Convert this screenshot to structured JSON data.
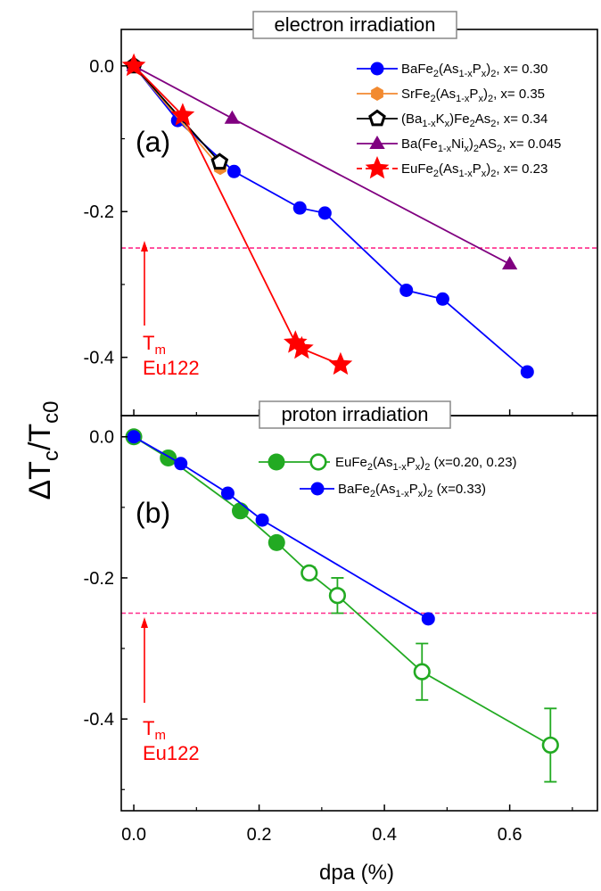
{
  "figure": {
    "ylabel": "ΔT_c/T_c0",
    "xlabel": "dpa (%)",
    "x_ticks": [
      "0.0",
      "0.2",
      "0.4",
      "0.6"
    ]
  },
  "chart_data": [
    {
      "type": "line",
      "panel": "(a)",
      "title": "electron irradiation",
      "xlim": [
        -0.02,
        0.74
      ],
      "ylim": [
        -0.48,
        0.05
      ],
      "y_ticks": [
        "0.0",
        "-0.2",
        "-0.4"
      ],
      "threshold_line": {
        "y": -0.25,
        "color": "#ff2a8a",
        "style": "dashed"
      },
      "annotation": {
        "line1": "T",
        "sub": "m",
        "line2": "Eu122",
        "color": "#ff0000"
      },
      "legend_placement": "top-right",
      "series": [
        {
          "name": "BaFe2(As1-xPx)2, x= 0.30",
          "marker": "circle",
          "color": "#0000ff",
          "x": [
            0.0,
            0.07,
            0.16,
            0.265,
            0.305,
            0.435,
            0.493,
            0.628
          ],
          "y": [
            0.0,
            -0.075,
            -0.145,
            -0.195,
            -0.202,
            -0.308,
            -0.32,
            -0.42
          ]
        },
        {
          "name": "SrFe2(As1-xPx)2, x= 0.35",
          "marker": "hexagon",
          "color": "#f28a30",
          "x": [
            0.0,
            0.138
          ],
          "y": [
            0.0,
            -0.14
          ]
        },
        {
          "name": "(Ba1-xKx)Fe2As2, x= 0.34",
          "marker": "pentagon-open",
          "color": "#000000",
          "x": [
            0.0,
            0.137
          ],
          "y": [
            0.0,
            -0.132
          ]
        },
        {
          "name": "Ba(Fe1-xNix)2AS2, x= 0.045",
          "marker": "triangle",
          "color": "#800080",
          "x": [
            0.0,
            0.157,
            0.6
          ],
          "y": [
            0.0,
            -0.072,
            -0.272
          ]
        },
        {
          "name": "EuFe2(As1-xPx)2, x= 0.23",
          "marker": "star",
          "color": "#ff0000",
          "x": [
            0.0,
            0.078,
            0.258,
            0.268,
            0.33
          ],
          "y": [
            0.0,
            -0.068,
            -0.38,
            -0.388,
            -0.41
          ]
        }
      ]
    },
    {
      "type": "line",
      "panel": "(b)",
      "title": "proton irradiation",
      "xlim": [
        -0.02,
        0.74
      ],
      "ylim": [
        -0.53,
        0.03
      ],
      "y_ticks": [
        "0.0",
        "-0.2",
        "-0.4"
      ],
      "threshold_line": {
        "y": -0.25,
        "color": "#ff2a8a",
        "style": "dashed"
      },
      "annotation": {
        "line1": "T",
        "sub": "m",
        "line2": "Eu122",
        "color": "#ff0000"
      },
      "legend_placement": "top-right",
      "series": [
        {
          "name": "EuFe2(As1-xPx)2 (x=0.20, 0.23)",
          "color": "#22aa22",
          "points": [
            {
              "x": 0.0,
              "y": 0.0,
              "filled": true
            },
            {
              "x": 0.055,
              "y": -0.03,
              "filled": true
            },
            {
              "x": 0.17,
              "y": -0.105,
              "filled": true
            },
            {
              "x": 0.228,
              "y": -0.15,
              "filled": true
            },
            {
              "x": 0.28,
              "y": -0.193,
              "filled": false,
              "err": 0.008
            },
            {
              "x": 0.325,
              "y": -0.225,
              "filled": false,
              "err": 0.025
            },
            {
              "x": 0.46,
              "y": -0.333,
              "filled": false,
              "err": 0.04
            },
            {
              "x": 0.665,
              "y": -0.437,
              "filled": false,
              "err": 0.052
            }
          ]
        },
        {
          "name": "BaFe2(As1-xPx)2 (x=0.33)",
          "marker": "circle",
          "color": "#0000ff",
          "x": [
            0.0,
            0.075,
            0.15,
            0.205,
            0.47
          ],
          "y": [
            0.0,
            -0.038,
            -0.08,
            -0.118,
            -0.258
          ]
        }
      ]
    }
  ]
}
